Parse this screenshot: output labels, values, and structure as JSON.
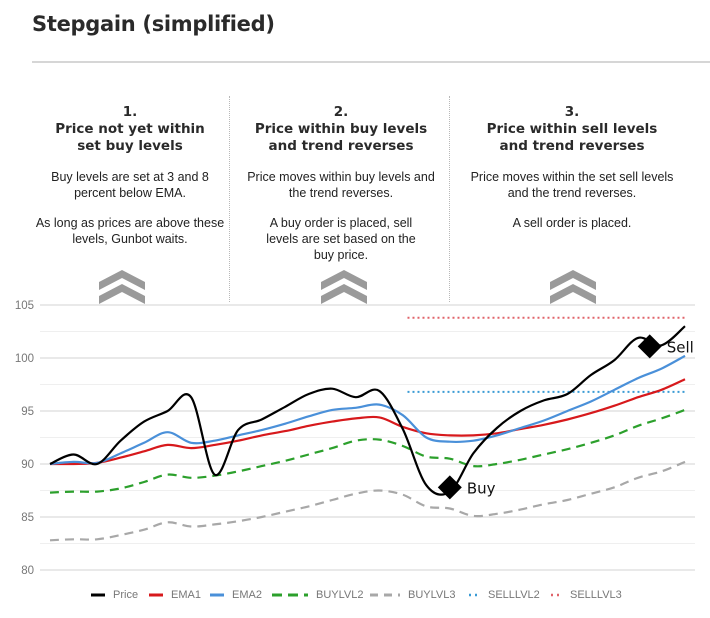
{
  "header": {
    "title": "Stepgain (simplified)"
  },
  "steps": [
    {
      "number": "1.",
      "heading_line1": "Price not yet within",
      "heading_line2": "set buy levels",
      "desc1": "Buy levels are set at 3 and 8 percent below EMA.",
      "desc2": "As long as prices are above these levels, Gunbot waits.",
      "icon": "double-chevron-up-icon"
    },
    {
      "number": "2.",
      "heading_line1": "Price within buy levels",
      "heading_line2": "and trend reverses",
      "desc1": "Price moves within buy levels and the trend reverses.",
      "desc2": "A buy order is placed, sell levels are set based on the buy price.",
      "icon": "double-chevron-up-icon"
    },
    {
      "number": "3.",
      "heading_line1": "Price within sell levels",
      "heading_line2": "and trend reverses",
      "desc1": "Price moves within the set sell levels and the trend reverses.",
      "desc2": "A sell order is placed.",
      "icon": "double-chevron-up-icon"
    }
  ],
  "colors": {
    "price": "#000000",
    "ema1": "#d7191c",
    "ema2": "#4a90d9",
    "buylvl2": "#2ca02c",
    "buylvl3": "#a8a8a8",
    "selllvl2": "#3a9bd5",
    "selllvl3": "#e0646a",
    "chevron": "#9a9a9a",
    "grid": "#e2e2e2",
    "axis_text": "#777777"
  },
  "chart_data": {
    "type": "line",
    "title": "Stepgain (simplified)",
    "xlabel": "",
    "ylabel": "",
    "ylim": [
      80,
      105
    ],
    "yticks": [
      "80",
      "85",
      "90",
      "95",
      "100",
      "105"
    ],
    "minor_grid_step": 2.5,
    "grid": true,
    "legend_position": "bottom",
    "x": [
      0,
      1,
      2,
      3,
      4,
      5,
      6,
      7,
      8,
      9,
      10,
      11,
      12,
      13,
      14,
      15,
      16,
      17,
      18,
      19,
      20,
      21,
      22,
      23,
      24,
      25,
      26,
      27
    ],
    "series": [
      {
        "name": "Price",
        "style": "solid",
        "values": [
          90.0,
          90.9,
          90.0,
          92.2,
          94.0,
          95.0,
          96.3,
          89.0,
          93.2,
          94.2,
          95.4,
          96.6,
          97.1,
          96.3,
          96.9,
          93.3,
          88.0,
          87.4,
          91.0,
          93.4,
          95.0,
          96.0,
          96.6,
          98.4,
          99.8,
          101.9,
          101.2,
          103.0
        ]
      },
      {
        "name": "EMA1",
        "style": "solid",
        "values": [
          90.0,
          90.0,
          90.1,
          90.6,
          91.2,
          91.8,
          91.5,
          91.8,
          92.2,
          92.7,
          93.1,
          93.6,
          94.0,
          94.3,
          94.4,
          93.5,
          92.9,
          92.7,
          92.7,
          92.9,
          93.3,
          93.7,
          94.2,
          94.8,
          95.5,
          96.3,
          97.0,
          98.0
        ]
      },
      {
        "name": "EMA2",
        "style": "solid",
        "values": [
          90.0,
          90.2,
          90.1,
          91.0,
          92.0,
          93.0,
          92.0,
          92.2,
          92.7,
          93.2,
          93.8,
          94.5,
          95.1,
          95.3,
          95.6,
          94.6,
          92.5,
          92.1,
          92.2,
          92.7,
          93.4,
          94.1,
          95.0,
          95.9,
          97.0,
          98.1,
          99.0,
          100.2
        ]
      },
      {
        "name": "BUYLVL2",
        "style": "dashed",
        "values": [
          87.3,
          87.4,
          87.4,
          87.7,
          88.3,
          89.0,
          88.7,
          88.9,
          89.3,
          89.8,
          90.3,
          90.9,
          91.5,
          92.2,
          92.3,
          91.7,
          90.7,
          90.5,
          89.8,
          90.0,
          90.4,
          90.9,
          91.4,
          92.0,
          92.7,
          93.6,
          94.3,
          95.1
        ]
      },
      {
        "name": "BUYLVL3",
        "style": "dashed",
        "values": [
          82.8,
          82.9,
          82.9,
          83.3,
          83.8,
          84.5,
          84.1,
          84.3,
          84.6,
          85.0,
          85.5,
          86.0,
          86.6,
          87.2,
          87.5,
          87.1,
          86.0,
          85.8,
          85.1,
          85.3,
          85.7,
          86.2,
          86.6,
          87.2,
          87.8,
          88.7,
          89.3,
          90.2
        ]
      },
      {
        "name": "SELLLVL2",
        "style": "dotted",
        "x_start": 15.2,
        "values_const": 96.8
      },
      {
        "name": "SELLLVL3",
        "style": "dotted",
        "x_start": 15.2,
        "values_const": 103.8
      }
    ],
    "annotations": [
      {
        "label": "Buy",
        "x": 17.0,
        "y": 87.8,
        "marker": "diamond"
      },
      {
        "label": "Sell",
        "x": 25.5,
        "y": 101.1,
        "marker": "diamond"
      }
    ]
  }
}
